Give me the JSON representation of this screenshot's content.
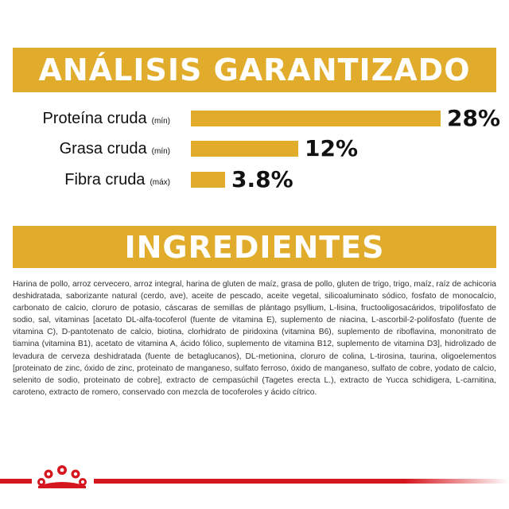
{
  "analysis": {
    "title": "ANÁLISIS GARANTIZADO",
    "rows": [
      {
        "name": "Proteína cruda",
        "qualifier": "(mín)",
        "value": "28%",
        "percent": 28
      },
      {
        "name": "Grasa cruda",
        "qualifier": "(mín)",
        "value": "12%",
        "percent": 12
      },
      {
        "name": "Fibra cruda",
        "qualifier": "(máx)",
        "value": "3.8%",
        "percent": 3.8
      }
    ]
  },
  "ingredients": {
    "title": "INGREDIENTES",
    "text": "Harina de pollo, arroz cervecero, arroz integral, harina de gluten de maíz, grasa de pollo, gluten de trigo, trigo, maíz, raíz de achicoria deshidratada, saborizante natural (cerdo, ave), aceite de pescado, aceite vegetal, silicoaluminato sódico, fosfato de monocalcio, carbonato de calcio, cloruro de potasio, cáscaras de semillas de plántago psyllium, L-lisina, fructooligosacáridos, tripolifosfato de sodio, sal, vitaminas [acetato DL-alfa-tocoferol (fuente de vitamina E), suplemento de niacina, L-ascorbil-2-polifosfato (fuente de vitamina C), D-pantotenato de calcio, biotina, clorhidrato de piridoxina (vitamina B6), suplemento de riboflavina, mononitrato de tiamina (vitamina B1), acetato de vitamina A, ácido fólico, suplemento de vitamina B12, suplemento de vitamina D3], hidrolizado de levadura de cerveza deshidratada (fuente de betaglucanos), DL-metionina, cloruro de colina, L-tirosina, taurina, oligoelementos [proteinato de zinc, óxido de zinc, proteinato de manganeso, sulfato ferroso, óxido de manganeso, sulfato de cobre, yodato de calcio, selenito de sodio, proteinato de cobre], extracto de cempasúchil (Tagetes erecta L.), extracto de Yucca schidigera, L-carnitina, caroteno, extracto de romero, conservado con mezcla de tocoferoles y ácido cítrico."
  },
  "footer": {
    "logo_icon": "royal-canin-crown-icon"
  },
  "colors": {
    "accent": "#e1ac2c",
    "brand_red": "#d6161e",
    "text": "#111111"
  }
}
